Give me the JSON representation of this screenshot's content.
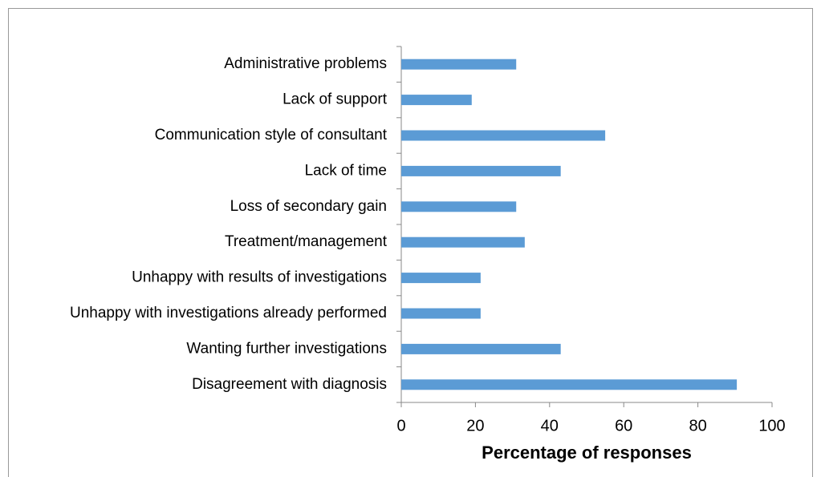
{
  "chart_data": {
    "type": "bar",
    "orientation": "horizontal",
    "categories": [
      "Administrative problems",
      "Lack of support",
      "Communication style of consultant",
      "Lack of time",
      "Loss of secondary gain",
      "Treatment/management",
      "Unhappy with results of investigations",
      "Unhappy with investigations already performed",
      "Wanting further investigations",
      "Disagreement with diagnosis"
    ],
    "values": [
      31,
      19,
      55,
      43,
      31,
      33.3,
      21.4,
      21.4,
      43,
      90.5
    ],
    "color": "#5b9bd5",
    "x_label": "Percentage of responses",
    "xlim": [
      0,
      100
    ],
    "xticks": [
      0,
      20,
      40,
      60,
      80,
      100
    ],
    "grid": false
  }
}
